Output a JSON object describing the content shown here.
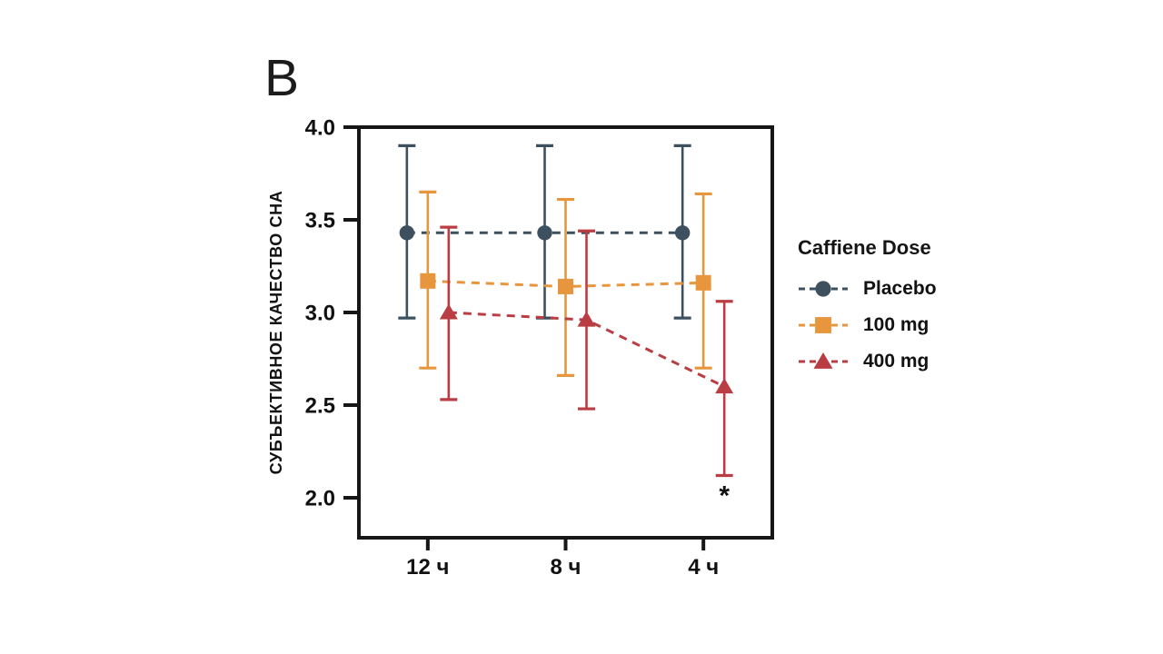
{
  "panel_label": "B",
  "chart_data": {
    "type": "line",
    "title": "",
    "categories": [
      "12 ч",
      "8 ч",
      "4 ч"
    ],
    "y_axis_label": "СУБЪЕКТИВНОЕ КАЧЕСТВО СНА",
    "y_ticks": [
      "4.0",
      "3.5",
      "3.0",
      "2.5",
      "2.0"
    ],
    "ylim": [
      1.78,
      4.0
    ],
    "grid": false,
    "error_bars": true,
    "series": [
      {
        "name": "Placebo",
        "marker": "circle",
        "color": "#3d505f",
        "values": [
          3.43,
          3.43,
          3.43
        ],
        "ci_lower": [
          2.97,
          2.97,
          2.97
        ],
        "ci_upper": [
          3.9,
          3.9,
          3.9
        ]
      },
      {
        "name": "100 mg",
        "marker": "square",
        "color": "#e8963e",
        "values": [
          3.17,
          3.14,
          3.16
        ],
        "ci_lower": [
          2.7,
          2.66,
          2.7
        ],
        "ci_upper": [
          3.65,
          3.61,
          3.64
        ]
      },
      {
        "name": "400 mg",
        "marker": "triangle",
        "color": "#b93d42",
        "values": [
          3.0,
          2.96,
          2.6
        ],
        "ci_lower": [
          2.53,
          2.48,
          2.12
        ],
        "ci_upper": [
          3.46,
          3.44,
          3.06
        ]
      }
    ],
    "annotations": [
      {
        "text": "*",
        "series": "400 mg",
        "category_index": 2,
        "position": "below-lower-ci"
      }
    ],
    "legend": {
      "title": "Caffiene Dose",
      "position": "right"
    }
  }
}
